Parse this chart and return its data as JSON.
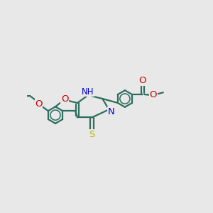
{
  "bg_color": "#e8e8e8",
  "bond_color": "#2d6e5e",
  "bond_width": 1.6,
  "atom_colors": {
    "O": "#cc0000",
    "N": "#0000cc",
    "S": "#b8b800",
    "H": "#555555"
  },
  "font_size": 8.5
}
